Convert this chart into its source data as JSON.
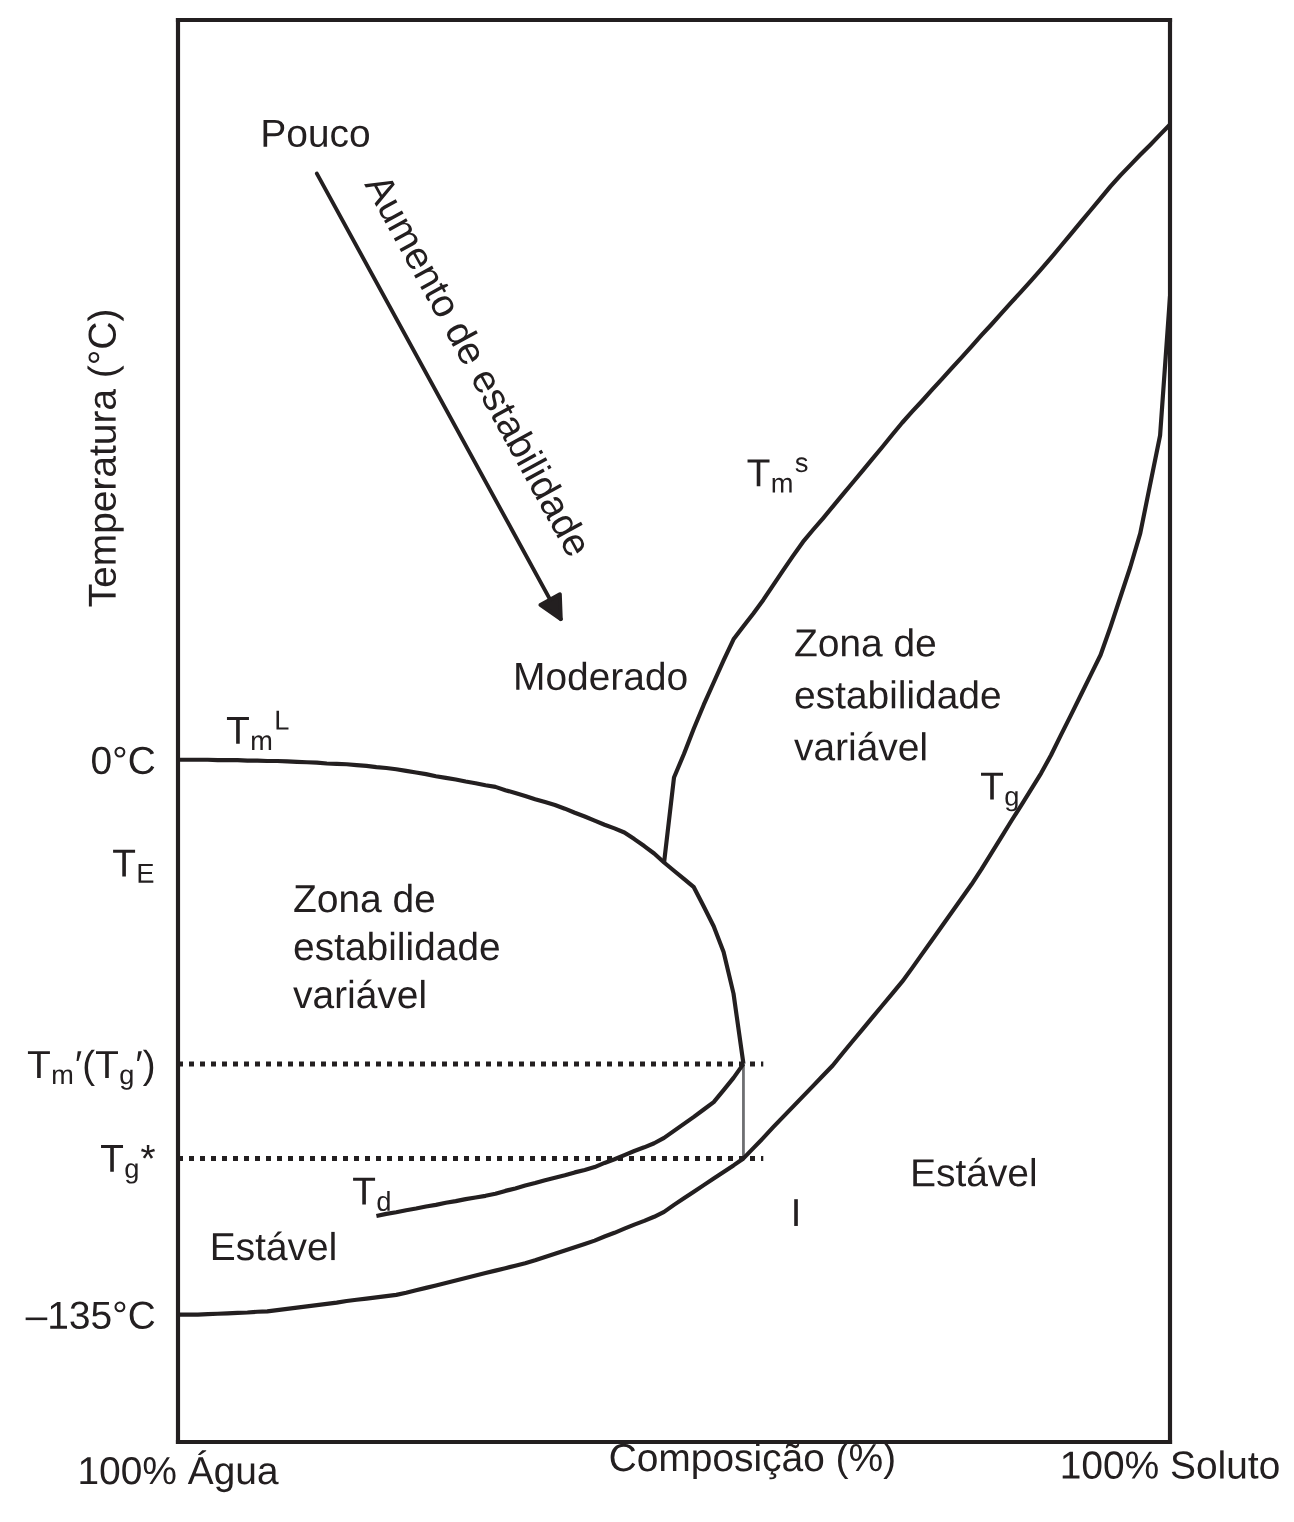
{
  "chart_data": {
    "type": "line",
    "xlabel": "Composição (%)",
    "ylabel": "Temperatura (°C)",
    "categories": [
      "100% Água",
      null,
      null,
      null,
      null,
      null,
      null,
      null,
      null,
      null,
      null,
      null,
      null,
      null,
      null,
      null,
      null,
      null,
      null,
      null,
      null,
      null,
      null,
      null,
      null,
      null,
      null,
      null,
      null,
      null,
      null,
      null,
      null,
      null,
      null,
      null,
      null,
      null,
      null,
      null,
      null,
      null,
      null,
      null,
      null,
      null,
      null,
      null,
      null,
      null,
      null,
      null,
      null,
      null,
      null,
      null,
      null,
      null,
      null,
      null,
      null,
      null,
      null,
      null,
      null,
      null,
      null,
      null,
      null,
      null,
      null,
      null,
      null,
      null,
      null,
      null,
      null,
      null,
      null,
      null,
      null,
      null,
      null,
      null,
      null,
      null,
      null,
      null,
      null,
      null,
      null,
      null,
      null,
      null,
      null,
      null,
      null,
      null,
      null,
      null,
      "100% Soluto"
    ],
    "ylim": [
      -166,
      180
    ],
    "yticks": [
      {
        "value": -135,
        "label": "–135°C"
      },
      {
        "value": -97,
        "label": "T$_{g}$*"
      },
      {
        "value": -74,
        "label": "T$_{m}$′(T$_{g}$′)"
      },
      {
        "value": -25,
        "label": "T$_{E}$"
      },
      {
        "value": 0,
        "label": "0°C"
      }
    ],
    "grid": false,
    "series": [
      {
        "color": "#231f20",
        "values": [
          0,
          0,
          0,
          0,
          -0.1,
          -0.1,
          -0.1,
          -0.2,
          -0.2,
          -0.3,
          -0.3,
          -0.4,
          -0.5,
          -0.6,
          -0.7,
          -0.9,
          -1.0,
          -1.1,
          -1.3,
          -1.5,
          -1.8,
          -2.0,
          -2.3,
          -2.7,
          -3.1,
          -3.5,
          -4.0,
          -4.4,
          -4.8,
          -5.3,
          -5.7,
          -6.2,
          -6.6,
          -7.4,
          -8.1,
          -8.8,
          -9.6,
          -10.3,
          -11.0,
          -11.9,
          -12.9,
          -13.8,
          -14.8,
          -15.8,
          -16.7,
          -17.7,
          -19.3,
          -21.0,
          -22.8,
          -25,
          -27.0,
          -29.0,
          -31.0,
          -35.7,
          -40.5,
          -46.8,
          -56.9,
          -74,
          null,
          null,
          null,
          null,
          null,
          null,
          null,
          null,
          null,
          null,
          null,
          null,
          null,
          null,
          null,
          null,
          null,
          null,
          null,
          null,
          null,
          null,
          null,
          null,
          null,
          null,
          null,
          null,
          null,
          null,
          null,
          null,
          null,
          null,
          null,
          null,
          null,
          null,
          null,
          null,
          null,
          null,
          null
        ]
      },
      {
        "color": "#231f20",
        "values": [
          null,
          null,
          null,
          null,
          null,
          null,
          null,
          null,
          null,
          null,
          null,
          null,
          null,
          null,
          null,
          null,
          null,
          null,
          null,
          null,
          null,
          null,
          null,
          null,
          null,
          null,
          null,
          null,
          null,
          null,
          null,
          null,
          null,
          null,
          null,
          null,
          null,
          null,
          null,
          null,
          null,
          null,
          null,
          null,
          null,
          null,
          null,
          null,
          null,
          -25,
          -4.3,
          1.4,
          7.6,
          13.4,
          18.8,
          24.2,
          29.3,
          32.5,
          35.6,
          38.9,
          42.5,
          46.1,
          49.6,
          53.0,
          55.9,
          58.7,
          61.6,
          64.5,
          67.4,
          70.3,
          73.2,
          76.1,
          79.1,
          82.0,
          84.7,
          87.3,
          90.0,
          92.6,
          95.3,
          97.9,
          100.6,
          103.3,
          105.9,
          108.6,
          111.3,
          113.9,
          116.6,
          119.3,
          122.1,
          125.0,
          127.9,
          130.8,
          133.7,
          136.6,
          139.5,
          142.2,
          144.7,
          147.2,
          149.6,
          152.1,
          154.6
        ]
      },
      {
        "color": "#231f20",
        "values": [
          -135.0,
          -135.0,
          -135.0,
          -134.9,
          -134.8,
          -134.7,
          -134.6,
          -134.5,
          -134.3,
          -134.2,
          -133.9,
          -133.6,
          -133.3,
          -133.0,
          -132.7,
          -132.4,
          -132.1,
          -131.7,
          -131.4,
          -131.1,
          -130.8,
          -130.5,
          -130.2,
          -129.7,
          -129.1,
          -128.5,
          -127.9,
          -127.3,
          -126.7,
          -126.1,
          -125.5,
          -124.9,
          -124.3,
          -123.7,
          -123.1,
          -122.5,
          -121.8,
          -121.0,
          -120.2,
          -119.4,
          -118.6,
          -117.8,
          -117.0,
          -116.0,
          -115.1,
          -114.1,
          -113.1,
          -112.2,
          -111.2,
          -110.0,
          -108.3,
          -106.7,
          -105.1,
          -103.5,
          -101.9,
          -100.3,
          -98.7,
          -97.0,
          -94.5,
          -92.0,
          -89.4,
          -86.9,
          -84.4,
          -81.9,
          -79.4,
          -76.9,
          -74.4,
          -71.4,
          -68.5,
          -65.6,
          -62.7,
          -59.8,
          -56.9,
          -54.0,
          -50.7,
          -47.3,
          -43.9,
          -40.5,
          -37.1,
          -33.7,
          -30.3,
          -26.6,
          -22.7,
          -18.8,
          -14.9,
          -11.1,
          -7.2,
          -3.3,
          1.1,
          6.0,
          10.8,
          15.7,
          20.6,
          25.5,
          32.3,
          39.6,
          46.9,
          55.1,
          67.0,
          78.9,
          112.8
        ],
        "errors": [
          null,
          null,
          null,
          null,
          null,
          null,
          null,
          null,
          null,
          null,
          null,
          null,
          null,
          null,
          null,
          null,
          null,
          null,
          null,
          null,
          null,
          null,
          null,
          null,
          null,
          null,
          null,
          null,
          null,
          null,
          null,
          null,
          null,
          null,
          null,
          null,
          null,
          null,
          null,
          null,
          null,
          null,
          null,
          null,
          null,
          null,
          null,
          null,
          null,
          null,
          null,
          null,
          null,
          null,
          null,
          null,
          null,
          [
            -97,
            -74
          ],
          null,
          null,
          null,
          null,
          null,
          null,
          null,
          null,
          null,
          null,
          null,
          null,
          null,
          null,
          null,
          null,
          null,
          null,
          null,
          null,
          null,
          null,
          null,
          null,
          null,
          null,
          null,
          null,
          null,
          null,
          null,
          null,
          null,
          null,
          null,
          null,
          null,
          null,
          null,
          null,
          null,
          null,
          null
        ]
      },
      {
        "color": "#231f20",
        "values": [
          null,
          null,
          null,
          null,
          null,
          null,
          null,
          null,
          null,
          null,
          null,
          null,
          null,
          null,
          null,
          null,
          null,
          null,
          null,
          null,
          -111.0,
          -110.5,
          -110.1,
          -109.6,
          -109.2,
          -108.7,
          -108.3,
          -107.8,
          -107.4,
          -106.9,
          -106.5,
          -106.1,
          -105.6,
          -104.9,
          -104.3,
          -103.6,
          -103.0,
          -102.3,
          -101.7,
          -101.1,
          -100.4,
          -99.8,
          -99.1,
          -98.1,
          -97.2,
          -96.2,
          -95.2,
          -94.3,
          -93.3,
          -92.0,
          -90.3,
          -88.6,
          -86.9,
          -85.1,
          -83.3,
          -80.4,
          -77.4,
          -74,
          null,
          null,
          null,
          null,
          null,
          null,
          null,
          null,
          null,
          null,
          null,
          null,
          null,
          null,
          null,
          null,
          null,
          null,
          null,
          null,
          null,
          null,
          null,
          null,
          null,
          null,
          null,
          null,
          null,
          null,
          null,
          null,
          null,
          null,
          null,
          null,
          null,
          null,
          null,
          null,
          null,
          null,
          null
        ]
      },
      {
        "color": "#231f20",
        "line_style": "dotted",
        "values": [
          -74,
          -74,
          -74,
          -74,
          -74,
          -74,
          -74,
          -74,
          -74,
          -74,
          -74,
          -74,
          -74,
          -74,
          -74,
          -74,
          -74,
          -74,
          -74,
          -74,
          -74,
          -74,
          -74,
          -74,
          -74,
          -74,
          -74,
          -74,
          -74,
          -74,
          -74,
          -74,
          -74,
          -74,
          -74,
          -74,
          -74,
          -74,
          -74,
          -74,
          -74,
          -74,
          -74,
          -74,
          -74,
          -74,
          -74,
          -74,
          -74,
          -74,
          -74,
          -74,
          -74,
          -74,
          -74,
          -74,
          -74,
          -74,
          -74,
          -74,
          null,
          null,
          null,
          null,
          null,
          null,
          null,
          null,
          null,
          null,
          null,
          null,
          null,
          null,
          null,
          null,
          null,
          null,
          null,
          null,
          null,
          null,
          null,
          null,
          null,
          null,
          null,
          null,
          null,
          null,
          null,
          null,
          null,
          null,
          null,
          null,
          null,
          null,
          null,
          null,
          null
        ]
      },
      {
        "color": "#231f20",
        "line_style": "dotted",
        "values": [
          -97,
          -97,
          -97,
          -97,
          -97,
          -97,
          -97,
          -97,
          -97,
          -97,
          -97,
          -97,
          -97,
          -97,
          -97,
          -97,
          -97,
          -97,
          -97,
          -97,
          -97,
          -97,
          -97,
          -97,
          -97,
          -97,
          -97,
          -97,
          -97,
          -97,
          -97,
          -97,
          -97,
          -97,
          -97,
          -97,
          -97,
          -97,
          -97,
          -97,
          -97,
          -97,
          -97,
          -97,
          -97,
          -97,
          -97,
          -97,
          -97,
          -97,
          -97,
          -97,
          -97,
          -97,
          -97,
          -97,
          -97,
          -97,
          -97,
          -97,
          null,
          null,
          null,
          null,
          null,
          null,
          null,
          null,
          null,
          null,
          null,
          null,
          null,
          null,
          null,
          null,
          null,
          null,
          null,
          null,
          null,
          null,
          null,
          null,
          null,
          null,
          null,
          null,
          null,
          null,
          null,
          null,
          null,
          null,
          null,
          null,
          null,
          null,
          null,
          null,
          null
        ]
      }
    ],
    "annotations": [
      "Pouco",
      "Aumento de estabilidade",
      "Moderado",
      "Zona de\nestabilidade\nvariável",
      "Zona de\nestabilidade\nvariável",
      "Estável",
      "Estável",
      "I",
      "T$_{m}$$^{L}$",
      "T$_{m}$$^{s}$",
      "T$_{g}$",
      "T$_{d}$"
    ]
  }
}
